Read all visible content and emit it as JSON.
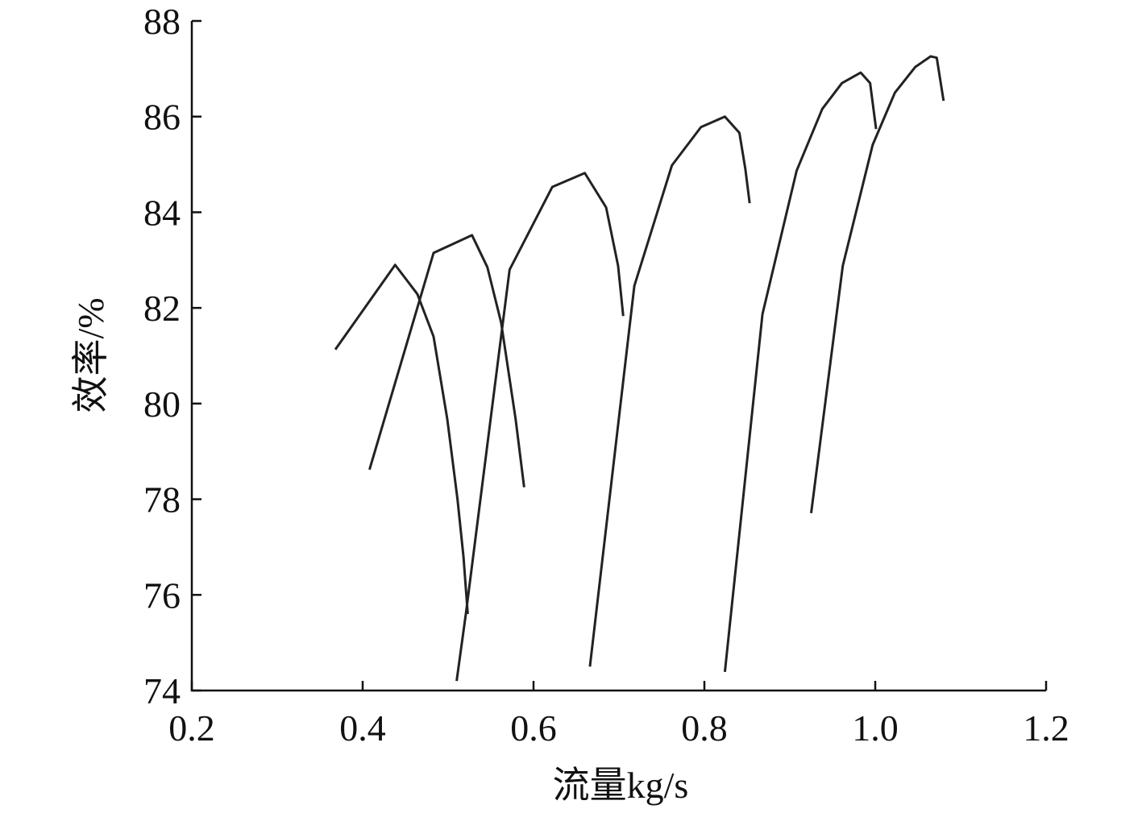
{
  "chart_data": {
    "type": "line",
    "xlabel": "流量kg/s",
    "ylabel": "效率/%",
    "xlim": [
      0.2,
      1.2
    ],
    "xticks": [
      0.2,
      0.4,
      0.6,
      0.8,
      {
        "value": 1,
        "label": "1.0"
      },
      1.2
    ],
    "ylim": [
      74,
      88
    ],
    "yticks": [
      74,
      76,
      78,
      80,
      82,
      84,
      86,
      88
    ],
    "series": [
      {
        "color": "#222222",
        "x": [
          0.368,
          0.438,
          0.464,
          0.483,
          0.499,
          0.511,
          0.518,
          0.523
        ],
        "values": [
          81.13,
          82.9,
          82.29,
          81.4,
          79.68,
          78.0,
          76.8,
          75.6
        ]
      },
      {
        "color": "#222222",
        "x": [
          0.408,
          0.483,
          0.528,
          0.546,
          0.562,
          0.579,
          0.589
        ],
        "values": [
          78.62,
          83.15,
          83.52,
          82.85,
          81.7,
          79.68,
          78.25
        ]
      },
      {
        "color": "#222222",
        "x": [
          0.51,
          0.521,
          0.572,
          0.622,
          0.66,
          0.685,
          0.699,
          0.705
        ],
        "values": [
          74.2,
          75.63,
          82.8,
          84.53,
          84.82,
          84.1,
          82.88,
          81.83
        ]
      },
      {
        "color": "#222222",
        "x": [
          0.666,
          0.718,
          0.762,
          0.796,
          0.824,
          0.841,
          0.848,
          0.853
        ],
        "values": [
          74.5,
          82.46,
          84.98,
          85.78,
          86.0,
          85.66,
          84.9,
          84.19
        ]
      },
      {
        "color": "#222222",
        "x": [
          0.824,
          0.868,
          0.908,
          0.938,
          0.961,
          0.983,
          0.994,
          1.001
        ],
        "values": [
          74.39,
          81.87,
          84.87,
          86.16,
          86.7,
          86.92,
          86.7,
          85.74
        ]
      },
      {
        "color": "#222222",
        "x": [
          0.925,
          0.962,
          0.997,
          1.023,
          1.047,
          1.065,
          1.072,
          1.08
        ],
        "values": [
          77.71,
          82.88,
          85.41,
          86.5,
          87.04,
          87.26,
          87.23,
          86.33
        ]
      }
    ]
  }
}
